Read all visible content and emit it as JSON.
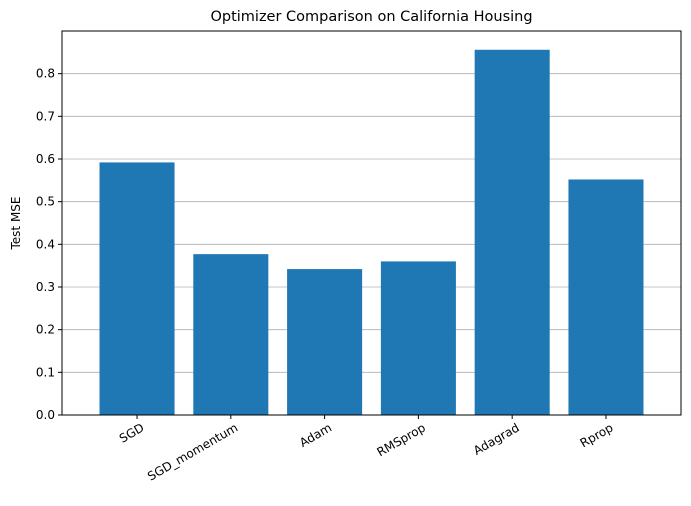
{
  "chart_data": {
    "type": "bar",
    "title": "Optimizer Comparison on California Housing",
    "xlabel": "",
    "ylabel": "Test MSE",
    "categories": [
      "SGD",
      "SGD_momentum",
      "Adam",
      "RMSprop",
      "Adagrad",
      "Rprop"
    ],
    "values": [
      0.592,
      0.377,
      0.342,
      0.36,
      0.856,
      0.552
    ],
    "ylim": [
      0,
      0.9
    ],
    "yticks": [
      0.0,
      0.1,
      0.2,
      0.3,
      0.4,
      0.5,
      0.6,
      0.7,
      0.8
    ],
    "ytick_labels": [
      "0.0",
      "0.1",
      "0.2",
      "0.3",
      "0.4",
      "0.5",
      "0.6",
      "0.7",
      "0.8"
    ],
    "bar_color": "#1f77b4",
    "grid": "y-axis horizontal lines",
    "xtick_rotation": 30,
    "legend": "none"
  }
}
